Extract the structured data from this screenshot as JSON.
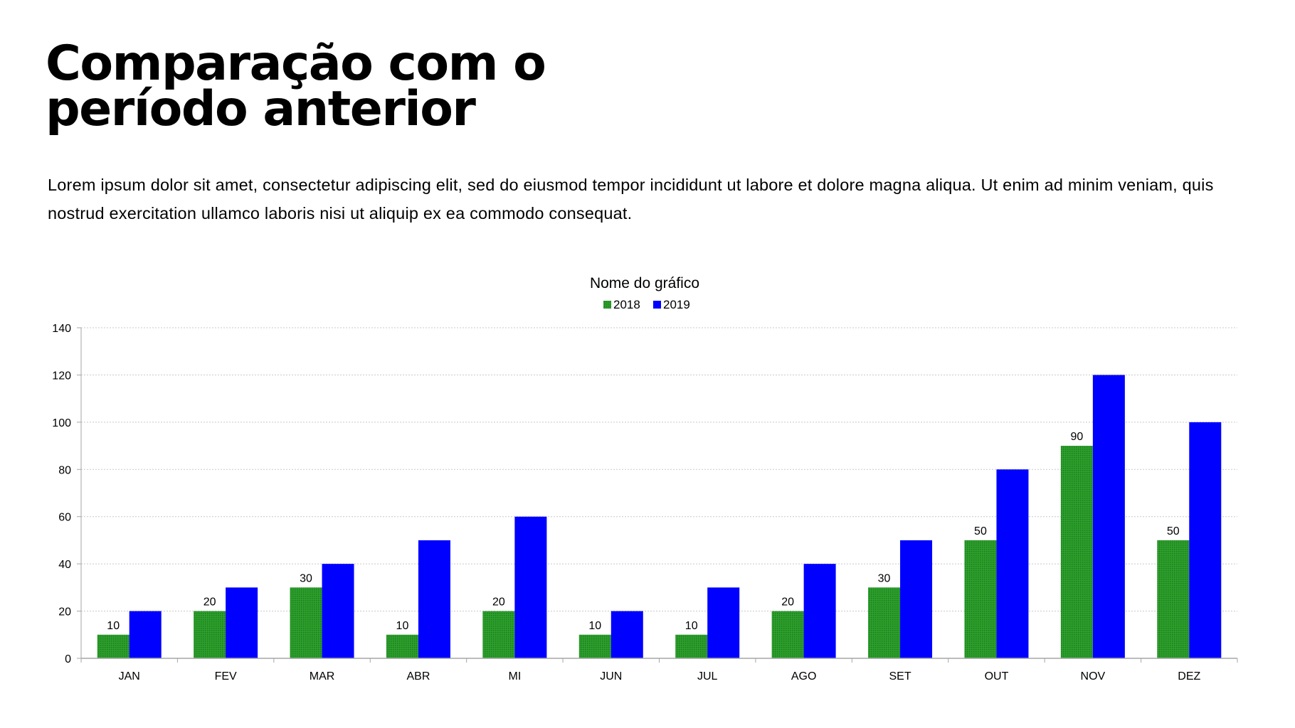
{
  "slide": {
    "title_line1": "Comparação com o",
    "title_line2": "período anterior",
    "body": "Lorem ipsum dolor sit amet, consectetur adipiscing elit, sed do eiusmod tempor incididunt ut labore et dolore magna aliqua. Ut enim ad minim veniam, quis nostrud exercitation ullamco laboris nisi ut aliquip ex ea commodo consequat."
  },
  "chart_data": {
    "type": "bar",
    "title": "Nome do gráfico",
    "categories": [
      "JAN",
      "FEV",
      "MAR",
      "ABR",
      "MI",
      "JUN",
      "JUL",
      "AGO",
      "SET",
      "OUT",
      "NOV",
      "DEZ"
    ],
    "series": [
      {
        "name": "2018",
        "color": "#2ca02c",
        "values": [
          10,
          20,
          30,
          10,
          20,
          10,
          10,
          20,
          30,
          50,
          90,
          50
        ],
        "data_labels": true
      },
      {
        "name": "2019",
        "color": "#0000ff",
        "values": [
          20,
          30,
          40,
          50,
          60,
          20,
          30,
          40,
          50,
          80,
          120,
          100
        ],
        "data_labels": false
      }
    ],
    "ylim": [
      0,
      140
    ],
    "yticks": [
      0,
      20,
      40,
      60,
      80,
      100,
      120,
      140
    ],
    "xlabel": "",
    "ylabel": "",
    "grid": "horizontal dotted",
    "legend": "top-center"
  }
}
